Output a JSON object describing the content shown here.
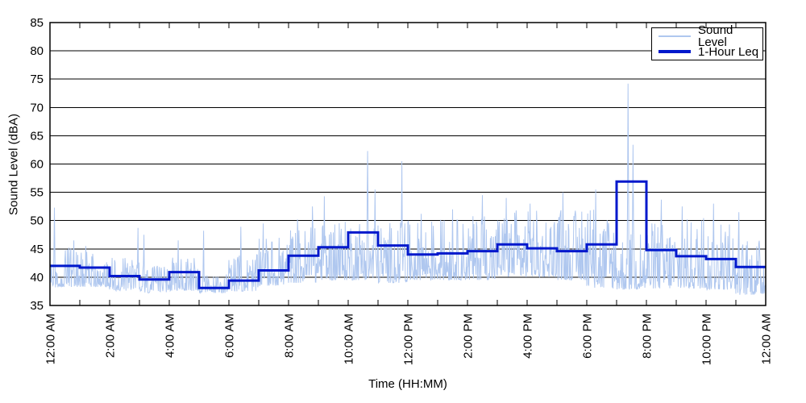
{
  "chart_data": {
    "type": "line",
    "title": "",
    "xlabel": "Time (HH:MM)",
    "ylabel": "Sound Level (dBA)",
    "ylim": [
      35,
      85
    ],
    "ytick_step": 5,
    "ytick_labels": [
      "35",
      "40",
      "45",
      "50",
      "55",
      "60",
      "65",
      "70",
      "75",
      "80",
      "85"
    ],
    "xlim_hours": [
      0,
      24
    ],
    "x_minor_tick_every_hours": 1,
    "x_tick_label_every_hours": 2,
    "x_tick_labels": [
      "12:00 AM",
      "2:00 AM",
      "4:00 AM",
      "6:00 AM",
      "8:00 AM",
      "10:00 AM",
      "12:00 PM",
      "2:00 PM",
      "4:00 PM",
      "6:00 PM",
      "8:00 PM",
      "10:00 PM",
      "12:00 AM"
    ],
    "grid": "horizontal",
    "background": "#ffffff",
    "axis_color": "#000000",
    "legend": {
      "position": "top-right"
    },
    "series": [
      {
        "name": "Sound Level",
        "type": "noisy-line",
        "sampling": "1-minute",
        "color": "#afc7ef",
        "line_width": 1,
        "hourly_range_dba": [
          [
            38.2,
            45.5
          ],
          [
            38.3,
            44.5
          ],
          [
            37.6,
            43.5
          ],
          [
            37.2,
            42.0
          ],
          [
            37.6,
            43.5
          ],
          [
            37.2,
            40.5
          ],
          [
            37.5,
            44.0
          ],
          [
            38.5,
            47.0
          ],
          [
            39.0,
            49.0
          ],
          [
            39.5,
            50.0
          ],
          [
            39.5,
            51.0
          ],
          [
            39.0,
            50.0
          ],
          [
            39.5,
            50.0
          ],
          [
            39.5,
            50.5
          ],
          [
            39.5,
            51.0
          ],
          [
            40.0,
            52.0
          ],
          [
            40.0,
            52.0
          ],
          [
            39.5,
            52.0
          ],
          [
            38.0,
            52.0
          ],
          [
            37.8,
            48.0
          ],
          [
            38.0,
            50.0
          ],
          [
            38.0,
            50.5
          ],
          [
            37.8,
            49.5
          ],
          [
            36.9,
            47.0
          ]
        ],
        "peak_events_hour_dba": [
          [
            0.15,
            52.3
          ],
          [
            0.8,
            46.5
          ],
          [
            1.2,
            45.5
          ],
          [
            2.95,
            48.7
          ],
          [
            3.15,
            47.5
          ],
          [
            4.3,
            46.5
          ],
          [
            5.15,
            48.2
          ],
          [
            6.4,
            48.9
          ],
          [
            7.15,
            49.5
          ],
          [
            8.3,
            50.2
          ],
          [
            8.8,
            52.5
          ],
          [
            9.2,
            54.3
          ],
          [
            10.65,
            62.3
          ],
          [
            10.9,
            55.5
          ],
          [
            11.8,
            60.5
          ],
          [
            12.45,
            51.2
          ],
          [
            13.5,
            52.0
          ],
          [
            14.5,
            54.5
          ],
          [
            15.3,
            54.0
          ],
          [
            16.1,
            53.0
          ],
          [
            17.2,
            55.0
          ],
          [
            18.3,
            55.5
          ],
          [
            19.38,
            74.2
          ],
          [
            19.55,
            63.4
          ],
          [
            20.5,
            53.7
          ],
          [
            21.2,
            52.5
          ],
          [
            22.25,
            53.0
          ],
          [
            23.1,
            51.5
          ]
        ]
      },
      {
        "name": "1-Hour Leq",
        "type": "step",
        "color": "#0018cc",
        "line_width": 3,
        "hours": [
          0,
          1,
          2,
          3,
          4,
          5,
          6,
          7,
          8,
          9,
          10,
          11,
          12,
          13,
          14,
          15,
          16,
          17,
          18,
          19,
          20,
          21,
          22,
          23
        ],
        "values_dba": [
          42.0,
          41.7,
          40.2,
          39.6,
          40.9,
          38.1,
          39.4,
          41.2,
          43.8,
          45.3,
          47.9,
          45.6,
          44.0,
          44.2,
          44.6,
          45.8,
          45.1,
          44.6,
          45.8,
          56.9,
          44.8,
          43.7,
          43.2,
          41.8
        ]
      }
    ]
  }
}
